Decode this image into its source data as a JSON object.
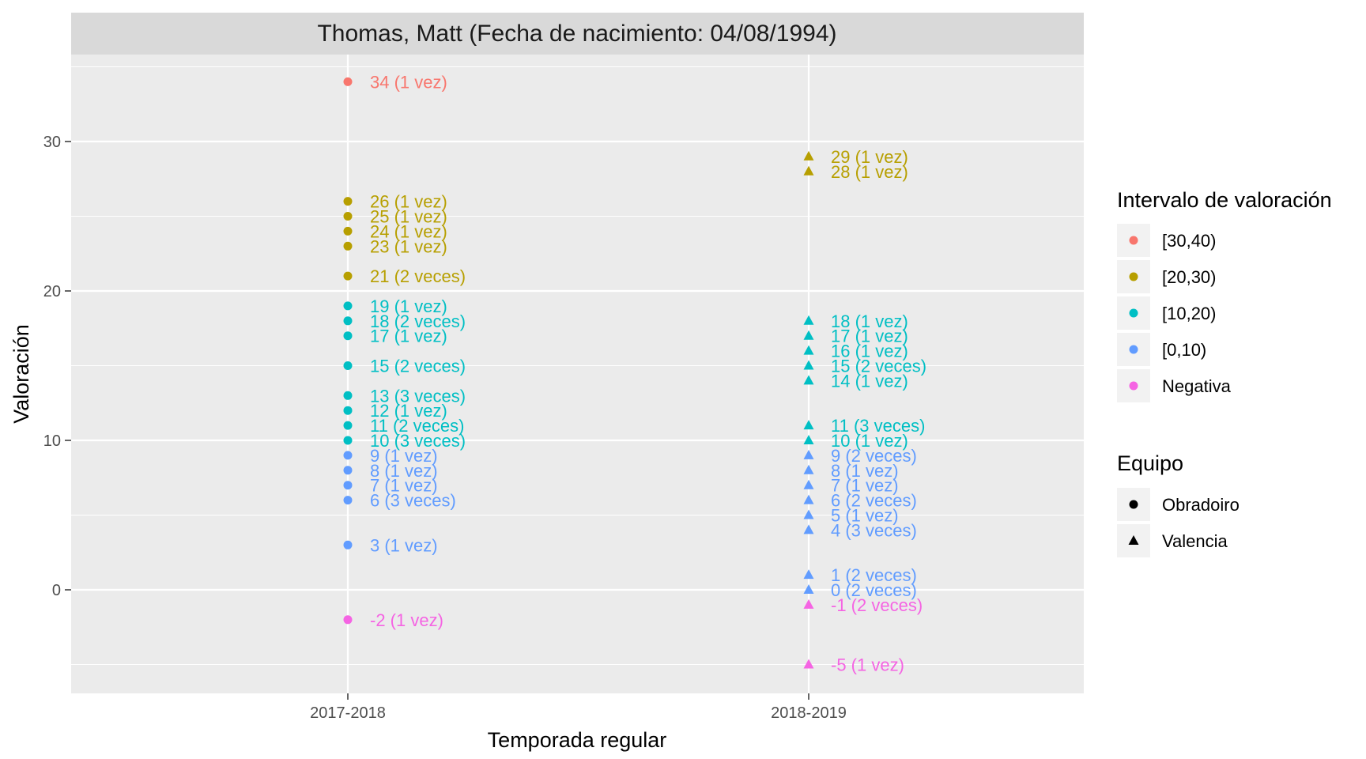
{
  "chart_data": {
    "type": "scatter",
    "title": "Thomas, Matt (Fecha de nacimiento: 04/08/1994)",
    "xlabel": "Temporada regular",
    "ylabel": "Valoración",
    "categories": [
      "2017-2018",
      "2018-2019"
    ],
    "ylim": [
      -7,
      36
    ],
    "yticks": [
      0,
      10,
      20,
      30
    ],
    "grid": true,
    "legend_placement": "right",
    "colors": {
      "[30,40)": "#F8766D",
      "[20,30)": "#B79F00",
      "[10,20)": "#00BFC4",
      "[0,10)": "#619CFF",
      "Negativa": "#F564E3"
    },
    "legends": [
      {
        "title": "Intervalo de valoración",
        "items": [
          {
            "label": "[30,40)",
            "color": "#F8766D",
            "shape": "circle"
          },
          {
            "label": "[20,30)",
            "color": "#B79F00",
            "shape": "circle"
          },
          {
            "label": "[10,20)",
            "color": "#00BFC4",
            "shape": "circle"
          },
          {
            "label": "[0,10)",
            "color": "#619CFF",
            "shape": "circle"
          },
          {
            "label": "Negativa",
            "color": "#F564E3",
            "shape": "circle"
          }
        ]
      },
      {
        "title": "Equipo",
        "items": [
          {
            "label": "Obradoiro",
            "color": "#000000",
            "shape": "circle"
          },
          {
            "label": "Valencia",
            "color": "#000000",
            "shape": "triangle"
          }
        ]
      }
    ],
    "series": [
      {
        "name": "Obradoiro",
        "category": "2017-2018",
        "shape": "circle",
        "points": [
          {
            "y": 34,
            "label": "34 (1 vez)",
            "interval": "[30,40)"
          },
          {
            "y": 26,
            "label": "26 (1 vez)",
            "interval": "[20,30)"
          },
          {
            "y": 25,
            "label": "25 (1 vez)",
            "interval": "[20,30)"
          },
          {
            "y": 24,
            "label": "24 (1 vez)",
            "interval": "[20,30)"
          },
          {
            "y": 23,
            "label": "23 (1 vez)",
            "interval": "[20,30)"
          },
          {
            "y": 21,
            "label": "21 (2 veces)",
            "interval": "[20,30)"
          },
          {
            "y": 19,
            "label": "19 (1 vez)",
            "interval": "[10,20)"
          },
          {
            "y": 18,
            "label": "18 (2 veces)",
            "interval": "[10,20)"
          },
          {
            "y": 17,
            "label": "17 (1 vez)",
            "interval": "[10,20)"
          },
          {
            "y": 15,
            "label": "15 (2 veces)",
            "interval": "[10,20)"
          },
          {
            "y": 13,
            "label": "13 (3 veces)",
            "interval": "[10,20)"
          },
          {
            "y": 12,
            "label": "12 (1 vez)",
            "interval": "[10,20)"
          },
          {
            "y": 11,
            "label": "11 (2 veces)",
            "interval": "[10,20)"
          },
          {
            "y": 10,
            "label": "10 (3 veces)",
            "interval": "[10,20)"
          },
          {
            "y": 9,
            "label": "9 (1 vez)",
            "interval": "[0,10)"
          },
          {
            "y": 8,
            "label": "8 (1 vez)",
            "interval": "[0,10)"
          },
          {
            "y": 7,
            "label": "7 (1 vez)",
            "interval": "[0,10)"
          },
          {
            "y": 6,
            "label": "6 (3 veces)",
            "interval": "[0,10)"
          },
          {
            "y": 3,
            "label": "3 (1 vez)",
            "interval": "[0,10)"
          },
          {
            "y": -2,
            "label": "-2 (1 vez)",
            "interval": "Negativa"
          }
        ]
      },
      {
        "name": "Valencia",
        "category": "2018-2019",
        "shape": "triangle",
        "points": [
          {
            "y": 29,
            "label": "29 (1 vez)",
            "interval": "[20,30)"
          },
          {
            "y": 28,
            "label": "28 (1 vez)",
            "interval": "[20,30)"
          },
          {
            "y": 18,
            "label": "18 (1 vez)",
            "interval": "[10,20)"
          },
          {
            "y": 17,
            "label": "17 (1 vez)",
            "interval": "[10,20)"
          },
          {
            "y": 16,
            "label": "16 (1 vez)",
            "interval": "[10,20)"
          },
          {
            "y": 15,
            "label": "15 (2 veces)",
            "interval": "[10,20)"
          },
          {
            "y": 14,
            "label": "14 (1 vez)",
            "interval": "[10,20)"
          },
          {
            "y": 11,
            "label": "11 (3 veces)",
            "interval": "[10,20)"
          },
          {
            "y": 10,
            "label": "10 (1 vez)",
            "interval": "[10,20)"
          },
          {
            "y": 9,
            "label": "9 (2 veces)",
            "interval": "[0,10)"
          },
          {
            "y": 8,
            "label": "8 (1 vez)",
            "interval": "[0,10)"
          },
          {
            "y": 7,
            "label": "7 (1 vez)",
            "interval": "[0,10)"
          },
          {
            "y": 6,
            "label": "6 (2 veces)",
            "interval": "[0,10)"
          },
          {
            "y": 5,
            "label": "5 (1 vez)",
            "interval": "[0,10)"
          },
          {
            "y": 4,
            "label": "4 (3 veces)",
            "interval": "[0,10)"
          },
          {
            "y": 1,
            "label": "1 (2 veces)",
            "interval": "[0,10)"
          },
          {
            "y": 0,
            "label": "0 (2 veces)",
            "interval": "[0,10)"
          },
          {
            "y": -1,
            "label": "-1 (2 veces)",
            "interval": "Negativa"
          },
          {
            "y": -5,
            "label": "-5 (1 vez)",
            "interval": "Negativa"
          }
        ]
      }
    ]
  }
}
